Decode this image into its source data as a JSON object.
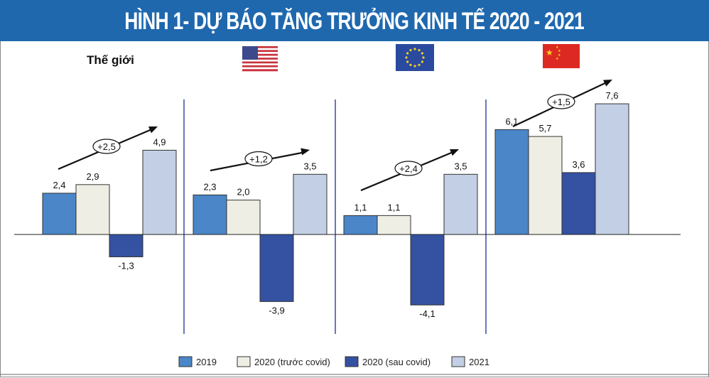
{
  "chart_data": {
    "type": "bar",
    "title": "HÌNH 1- DỰ BÁO TĂNG TRƯỞNG KINH TẾ 2020 - 2021",
    "categories": [
      "Thế giới",
      "USA",
      "EU",
      "China"
    ],
    "category_labels_shown": [
      "Thế giới"
    ],
    "category_icons": [
      "text",
      "us-flag-icon",
      "eu-flag-icon",
      "china-flag-icon"
    ],
    "series": [
      {
        "name": "2019",
        "color": "#4a86c8",
        "values": [
          2.4,
          2.3,
          1.1,
          6.1
        ],
        "labels": [
          "2,4",
          "2,3",
          "1,1",
          "6,1"
        ]
      },
      {
        "name": "2020 (trước covid)",
        "color": "#efeee4",
        "values": [
          2.9,
          2.0,
          1.1,
          5.7
        ],
        "labels": [
          "2,9",
          "2,0",
          "1,1",
          "5,7"
        ]
      },
      {
        "name": "2020 (sau covid)",
        "color": "#3451a2",
        "values": [
          -1.3,
          -3.9,
          -4.1,
          3.6
        ],
        "labels": [
          "-1,3",
          "-3,9",
          "-4,1",
          "3,6"
        ]
      },
      {
        "name": "2021",
        "color": "#c3cfe4",
        "values": [
          4.9,
          3.5,
          3.5,
          7.6
        ],
        "labels": [
          "4,9",
          "3,5",
          "3,5",
          "7,6"
        ]
      }
    ],
    "annotations": [
      "+2,5",
      "+1,2",
      "+2,4",
      "+1,5"
    ],
    "ylim": [
      -5,
      8.5
    ],
    "grid": false,
    "legend": "bottom"
  },
  "colors": {
    "title_bar": "#1f68ae",
    "divider": "#3a4aa0"
  }
}
